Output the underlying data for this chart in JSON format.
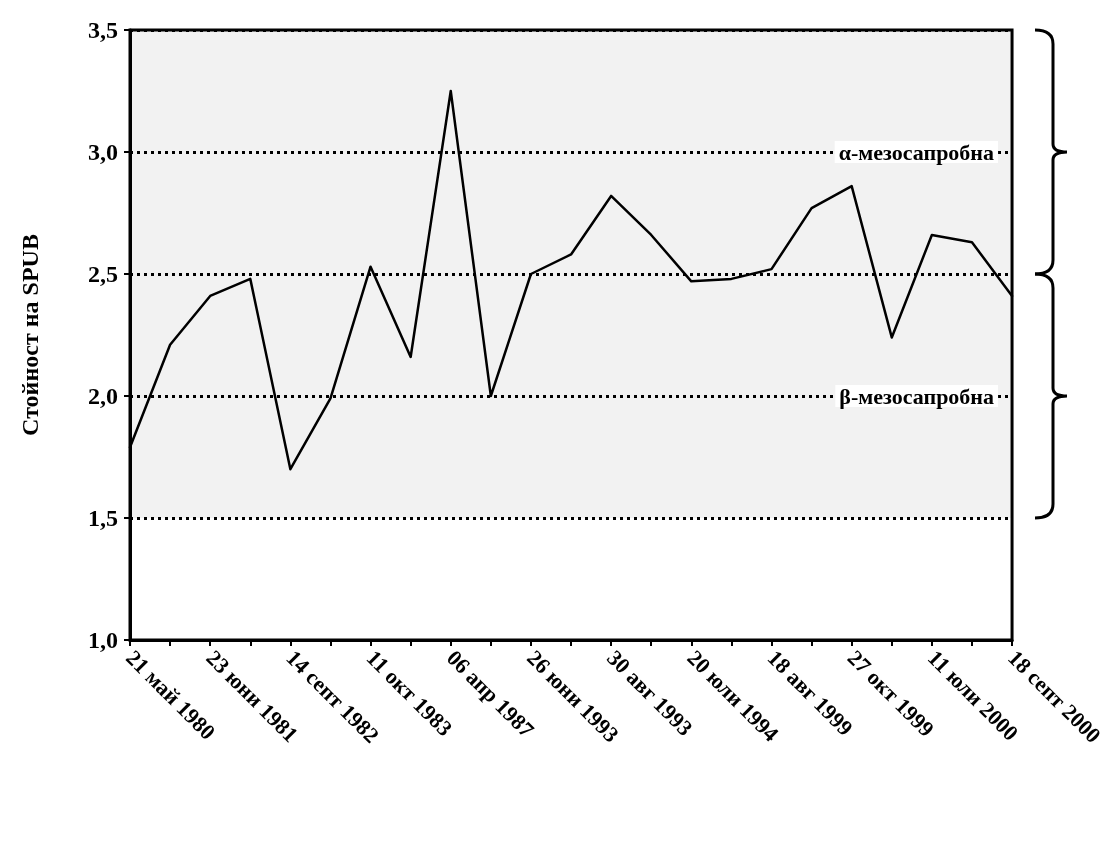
{
  "chart_data": {
    "type": "line",
    "ylabel": "Стойност на SPUB",
    "categories": [
      "21 май 1980",
      null,
      "23 юни 1981",
      null,
      "14 септ 1982",
      null,
      "11 окт 1983",
      null,
      "06 апр 1987",
      null,
      "26 юни 1993",
      null,
      "30 авг 1993",
      null,
      "20 юли 1994",
      null,
      "18 авг 1999",
      null,
      "27 окт 1999",
      null,
      "11 юли 2000",
      null,
      "18 септ 2000"
    ],
    "series": [
      {
        "color": "#000000",
        "values": [
          1.79,
          2.21,
          2.41,
          2.48,
          1.7,
          1.99,
          2.53,
          2.16,
          3.25,
          2.0,
          2.5,
          2.58,
          2.82,
          2.66,
          2.47,
          2.48,
          2.52,
          2.77,
          2.86,
          2.24,
          2.66,
          2.63,
          2.41
        ]
      }
    ],
    "ylim": [
      1.0,
      3.5
    ],
    "yticks": [
      {
        "value": 1.0,
        "label": "1,0"
      },
      {
        "value": 1.5,
        "label": "1,5"
      },
      {
        "value": 2.0,
        "label": "2,0"
      },
      {
        "value": 2.5,
        "label": "2,5"
      },
      {
        "value": 3.0,
        "label": "3,0"
      },
      {
        "value": 3.5,
        "label": "3,5"
      }
    ],
    "bands": [
      {
        "axis": "y",
        "from": 2.5,
        "to": 3.5,
        "label": "α-мезосапробна"
      },
      {
        "axis": "y",
        "from": 1.5,
        "to": 2.5,
        "label": "β-мезосапробна"
      }
    ],
    "grid": "y",
    "marker": "none",
    "line_style": "solid"
  }
}
